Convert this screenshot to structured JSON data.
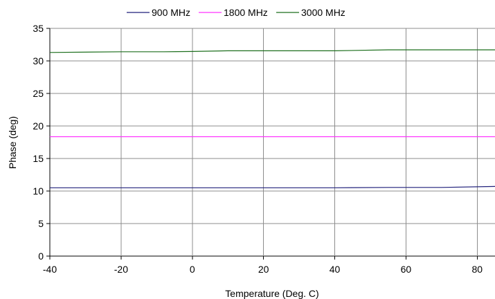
{
  "chart_data": {
    "type": "line",
    "title": "",
    "xlabel": "Temperature (Deg. C)",
    "ylabel": "Phase (deg)",
    "xlim": [
      -40,
      85
    ],
    "ylim": [
      0,
      35
    ],
    "x_ticks": [
      -40,
      -20,
      0,
      20,
      40,
      60,
      80
    ],
    "y_ticks": [
      0,
      5,
      10,
      15,
      20,
      25,
      30,
      35
    ],
    "grid": true,
    "legend_position": "top",
    "series": [
      {
        "name": "900 MHz",
        "color": "#1f1f7a",
        "points": [
          [
            -40,
            10.5
          ],
          [
            -20,
            10.5
          ],
          [
            0,
            10.5
          ],
          [
            20,
            10.5
          ],
          [
            40,
            10.5
          ],
          [
            55,
            10.55
          ],
          [
            70,
            10.55
          ],
          [
            85,
            10.7
          ]
        ]
      },
      {
        "name": "1800 MHz",
        "color": "#ff33ff",
        "points": [
          [
            -40,
            18.35
          ],
          [
            -20,
            18.35
          ],
          [
            0,
            18.35
          ],
          [
            20,
            18.35
          ],
          [
            40,
            18.35
          ],
          [
            60,
            18.35
          ],
          [
            85,
            18.35
          ]
        ]
      },
      {
        "name": "3000 MHz",
        "color": "#1c6e1c",
        "points": [
          [
            -40,
            31.3
          ],
          [
            -20,
            31.4
          ],
          [
            -8,
            31.4
          ],
          [
            0,
            31.45
          ],
          [
            10,
            31.55
          ],
          [
            25,
            31.55
          ],
          [
            40,
            31.55
          ],
          [
            55,
            31.7
          ],
          [
            70,
            31.7
          ],
          [
            85,
            31.7
          ]
        ]
      }
    ]
  }
}
